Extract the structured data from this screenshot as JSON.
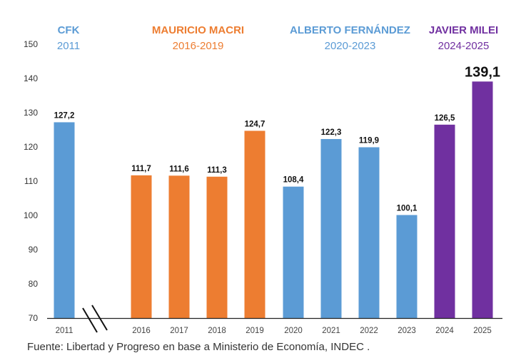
{
  "chart_data": {
    "type": "bar",
    "categories": [
      "2011",
      "2016",
      "2017",
      "2018",
      "2019",
      "2020",
      "2021",
      "2022",
      "2023",
      "2024",
      "2025"
    ],
    "values": [
      127.2,
      111.7,
      111.6,
      111.3,
      124.7,
      108.4,
      122.3,
      119.9,
      100.1,
      126.5,
      139.1
    ],
    "value_labels": [
      "127,2",
      "111,7",
      "111,6",
      "111,3",
      "124,7",
      "108,4",
      "122,3",
      "119,9",
      "100,1",
      "126,5",
      "139,1"
    ],
    "bar_groups": [
      "cfk",
      "macri",
      "macri",
      "macri",
      "macri",
      "fernandez",
      "fernandez",
      "fernandez",
      "fernandez",
      "milei",
      "milei"
    ],
    "highlight_last_label": true,
    "ylim": [
      70,
      150
    ],
    "yticks": [
      "70",
      "80",
      "90",
      "100",
      "110",
      "120",
      "130",
      "140",
      "150"
    ],
    "axis_break_between": [
      "2011",
      "2016"
    ],
    "grid": false,
    "periods": [
      {
        "name": "CFK",
        "years": "2011",
        "color": "#5B9BD5",
        "over": [
          "2011"
        ]
      },
      {
        "name": "MAURICIO MACRI",
        "years": "2016-2019",
        "color": "#ED7D31",
        "over": [
          "2016",
          "2019"
        ]
      },
      {
        "name": "ALBERTO FERNÁNDEZ",
        "years": "2020-2023",
        "color": "#5B9BD5",
        "over": [
          "2020",
          "2023"
        ]
      },
      {
        "name": "JAVIER MILEI",
        "years": "2024-2025",
        "color": "#7030A0",
        "over": [
          "2024",
          "2025"
        ]
      }
    ],
    "colors": {
      "cfk": "#5B9BD5",
      "macri": "#ED7D31",
      "fernandez": "#5B9BD5",
      "milei": "#7030A0"
    }
  },
  "source": "Fuente: Libertad y Progreso en base a Ministerio de Economía, INDEC  ."
}
